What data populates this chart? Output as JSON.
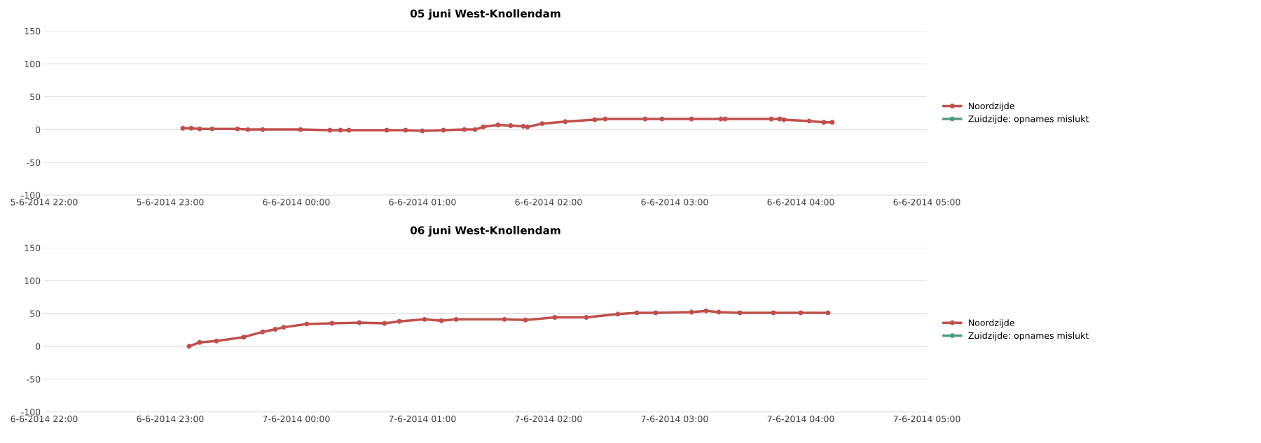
{
  "chart_data": [
    {
      "type": "line",
      "title": "05 juni West-Knollendam",
      "marker": "circle",
      "line_style": "solid",
      "grid": "y",
      "legend": "right",
      "ylim": [
        -100,
        150
      ],
      "yticks": [
        -100,
        -50,
        0,
        50,
        100,
        150
      ],
      "xlim": [
        "2014-06-05T22:00",
        "2014-06-06T05:00"
      ],
      "xticks": [
        {
          "value": "2014-06-05T22:00",
          "label": "5-6-2014 22:00"
        },
        {
          "value": "2014-06-05T23:00",
          "label": "5-6-2014 23:00"
        },
        {
          "value": "2014-06-06T00:00",
          "label": "6-6-2014 00:00"
        },
        {
          "value": "2014-06-06T01:00",
          "label": "6-6-2014 01:00"
        },
        {
          "value": "2014-06-06T02:00",
          "label": "6-6-2014 02:00"
        },
        {
          "value": "2014-06-06T03:00",
          "label": "6-6-2014 03:00"
        },
        {
          "value": "2014-06-06T04:00",
          "label": "6-6-2014 04:00"
        },
        {
          "value": "2014-06-06T05:00",
          "label": "6-6-2014 05:00"
        }
      ],
      "series": [
        {
          "name": "Noordzijde",
          "color": "#c0504d",
          "x": [
            "2014-06-05T23:06",
            "2014-06-05T23:10",
            "2014-06-05T23:14",
            "2014-06-05T23:20",
            "2014-06-05T23:32",
            "2014-06-05T23:37",
            "2014-06-05T23:44",
            "2014-06-06T00:02",
            "2014-06-06T00:16",
            "2014-06-06T00:21",
            "2014-06-06T00:25",
            "2014-06-06T00:43",
            "2014-06-06T00:52",
            "2014-06-06T01:00",
            "2014-06-06T01:10",
            "2014-06-06T01:20",
            "2014-06-06T01:25",
            "2014-06-06T01:29",
            "2014-06-06T01:36",
            "2014-06-06T01:42",
            "2014-06-06T01:48",
            "2014-06-06T01:50",
            "2014-06-06T01:57",
            "2014-06-06T02:08",
            "2014-06-06T02:22",
            "2014-06-06T02:27",
            "2014-06-06T02:46",
            "2014-06-06T02:54",
            "2014-06-06T03:08",
            "2014-06-06T03:22",
            "2014-06-06T03:24",
            "2014-06-06T03:46",
            "2014-06-06T03:50",
            "2014-06-06T03:52",
            "2014-06-06T04:04",
            "2014-06-06T04:11",
            "2014-06-06T04:15"
          ],
          "values": [
            2,
            2,
            1,
            1,
            1,
            0,
            0,
            0,
            -1,
            -1,
            -1,
            -1,
            -1,
            -2,
            -1,
            0,
            0,
            4,
            7,
            6,
            5,
            4,
            9,
            12,
            15,
            16,
            16,
            16,
            16,
            16,
            16,
            16,
            16,
            15,
            13,
            11,
            11
          ]
        },
        {
          "name": "Zuidzijde: opnames mislukt",
          "color": "#4f9a7e"
        }
      ]
    },
    {
      "type": "line",
      "title": "06 juni West-Knollendam",
      "marker": "circle",
      "line_style": "solid",
      "grid": "y",
      "legend": "right",
      "ylim": [
        -100,
        150
      ],
      "yticks": [
        -100,
        -50,
        0,
        50,
        100,
        150
      ],
      "xlim": [
        "2014-06-06T22:00",
        "2014-06-07T05:00"
      ],
      "xticks": [
        {
          "value": "2014-06-06T22:00",
          "label": "6-6-2014 22:00"
        },
        {
          "value": "2014-06-06T23:00",
          "label": "6-6-2014 23:00"
        },
        {
          "value": "2014-06-07T00:00",
          "label": "7-6-2014 00:00"
        },
        {
          "value": "2014-06-07T01:00",
          "label": "7-6-2014 01:00"
        },
        {
          "value": "2014-06-07T02:00",
          "label": "7-6-2014 02:00"
        },
        {
          "value": "2014-06-07T03:00",
          "label": "7-6-2014 03:00"
        },
        {
          "value": "2014-06-07T04:00",
          "label": "7-6-2014 04:00"
        },
        {
          "value": "2014-06-07T05:00",
          "label": "7-6-2014 05:00"
        }
      ],
      "series": [
        {
          "name": "Noordzijde",
          "color": "#c0504d",
          "x": [
            "2014-06-06T23:09",
            "2014-06-06T23:14",
            "2014-06-06T23:22",
            "2014-06-06T23:35",
            "2014-06-06T23:44",
            "2014-06-06T23:50",
            "2014-06-06T23:54",
            "2014-06-07T00:05",
            "2014-06-07T00:17",
            "2014-06-07T00:30",
            "2014-06-07T00:42",
            "2014-06-07T00:49",
            "2014-06-07T01:01",
            "2014-06-07T01:09",
            "2014-06-07T01:16",
            "2014-06-07T01:39",
            "2014-06-07T01:49",
            "2014-06-07T02:03",
            "2014-06-07T02:18",
            "2014-06-07T02:33",
            "2014-06-07T02:42",
            "2014-06-07T02:51",
            "2014-06-07T03:08",
            "2014-06-07T03:15",
            "2014-06-07T03:21",
            "2014-06-07T03:31",
            "2014-06-07T03:47",
            "2014-06-07T04:00",
            "2014-06-07T04:13"
          ],
          "values": [
            0,
            6,
            8,
            14,
            22,
            26,
            29,
            34,
            35,
            36,
            35,
            38,
            41,
            39,
            41,
            41,
            40,
            44,
            44,
            49,
            51,
            51,
            52,
            54,
            52,
            51,
            51,
            51,
            51
          ]
        },
        {
          "name": "Zuidzijde: opnames mislukt",
          "color": "#4f9a7e"
        }
      ]
    }
  ]
}
